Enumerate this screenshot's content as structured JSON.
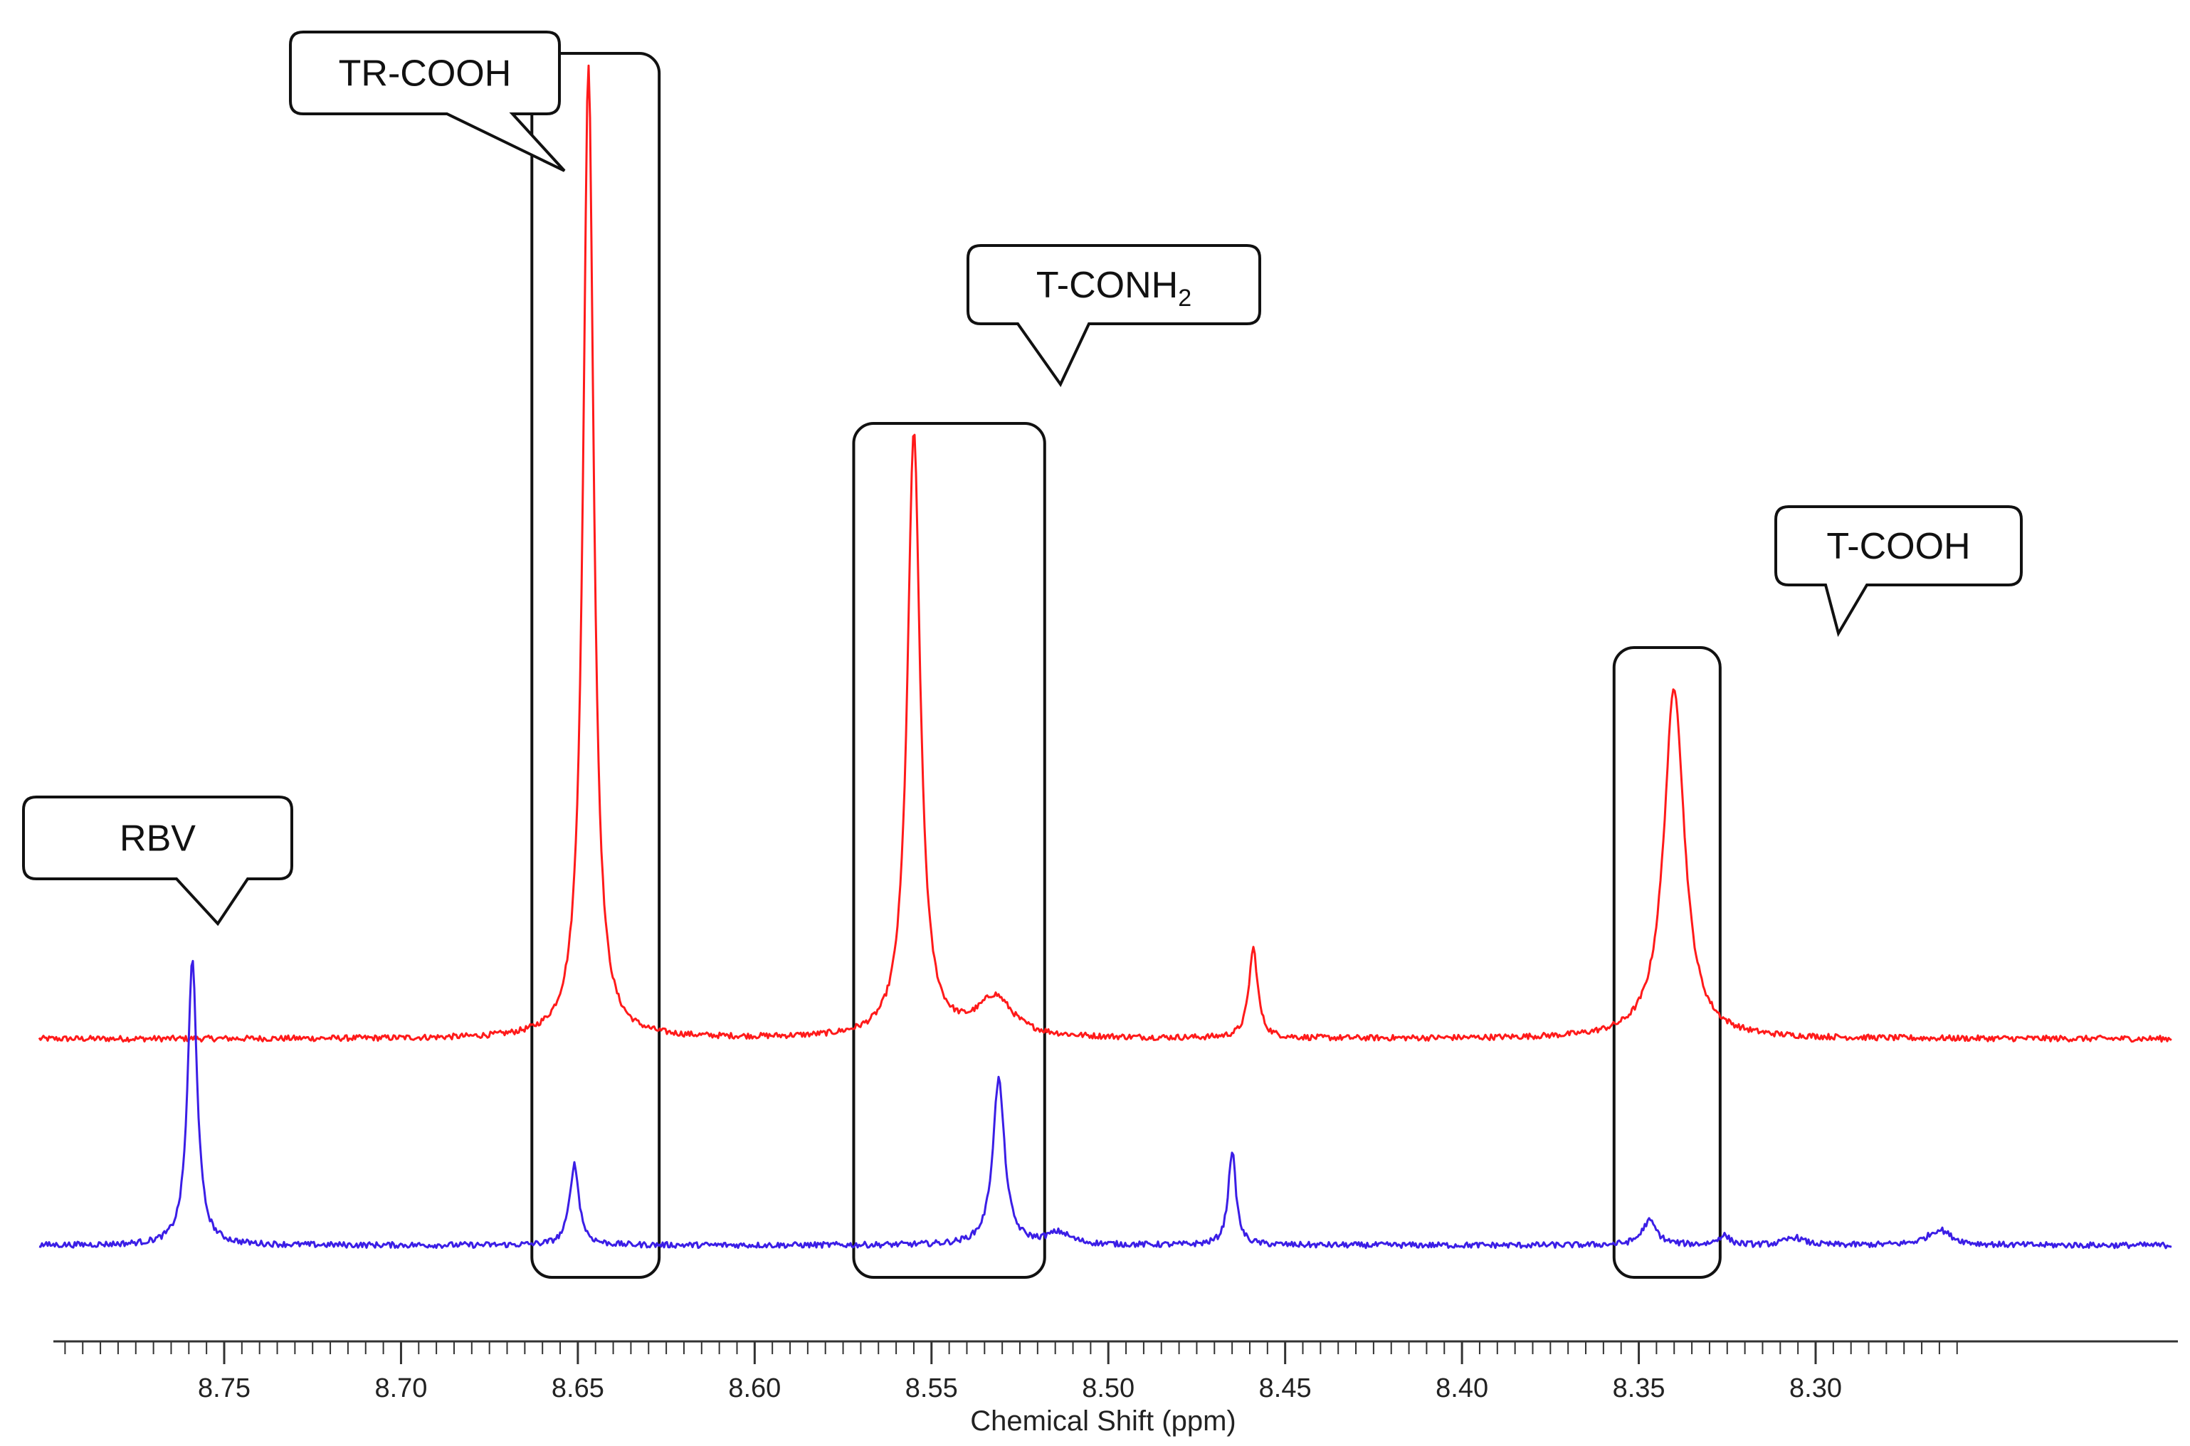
{
  "chart_data": {
    "type": "line",
    "xlabel": "Chemical Shift (ppm)",
    "ylabel": "",
    "xlim": [
      8.8,
      8.26
    ],
    "x_reversed": true,
    "grid": false,
    "major_ticks": [
      8.75,
      8.7,
      8.65,
      8.6,
      8.55,
      8.5,
      8.45,
      8.4,
      8.35,
      8.3
    ],
    "tick_labels": [
      "8.75",
      "8.70",
      "8.65",
      "8.60",
      "8.55",
      "8.50",
      "8.45",
      "8.40",
      "8.35",
      "8.30"
    ],
    "series": [
      {
        "color": "#ff1a1a",
        "baseline": 0,
        "peaks": [
          {
            "x": 8.647,
            "height": 1.0,
            "width": 0.0018
          },
          {
            "x": 8.555,
            "height": 0.62,
            "width": 0.0022
          },
          {
            "x": 8.532,
            "height": 0.04,
            "width": 0.006
          },
          {
            "x": 8.459,
            "height": 0.092,
            "width": 0.0015
          },
          {
            "x": 8.34,
            "height": 0.36,
            "width": 0.0035
          }
        ]
      },
      {
        "color": "#3b1ee6",
        "baseline": 0,
        "peaks": [
          {
            "x": 8.759,
            "height": 0.293,
            "width": 0.0016
          },
          {
            "x": 8.651,
            "height": 0.083,
            "width": 0.0016
          },
          {
            "x": 8.531,
            "height": 0.17,
            "width": 0.002
          },
          {
            "x": 8.514,
            "height": 0.012,
            "width": 0.004
          },
          {
            "x": 8.465,
            "height": 0.097,
            "width": 0.0013
          },
          {
            "x": 8.347,
            "height": 0.025,
            "width": 0.0025
          },
          {
            "x": 8.326,
            "height": 0.01,
            "width": 0.002
          },
          {
            "x": 8.306,
            "height": 0.008,
            "width": 0.003
          },
          {
            "x": 8.265,
            "height": 0.016,
            "width": 0.004
          }
        ]
      }
    ],
    "annotations": [
      {
        "label": "RBV",
        "sub": "",
        "peak_x": 8.759
      },
      {
        "label": "TR-COOH",
        "sub": "",
        "peak_x": 8.647
      },
      {
        "label": "T-CONH",
        "sub": "2",
        "peak_x": 8.545
      },
      {
        "label": "T-COOH",
        "sub": "",
        "peak_x": 8.34
      }
    ],
    "highlight_boxes": [
      {
        "x_from": 8.663,
        "x_to": 8.627
      },
      {
        "x_from": 8.572,
        "x_to": 8.518
      },
      {
        "x_from": 8.357,
        "x_to": 8.327
      }
    ]
  }
}
